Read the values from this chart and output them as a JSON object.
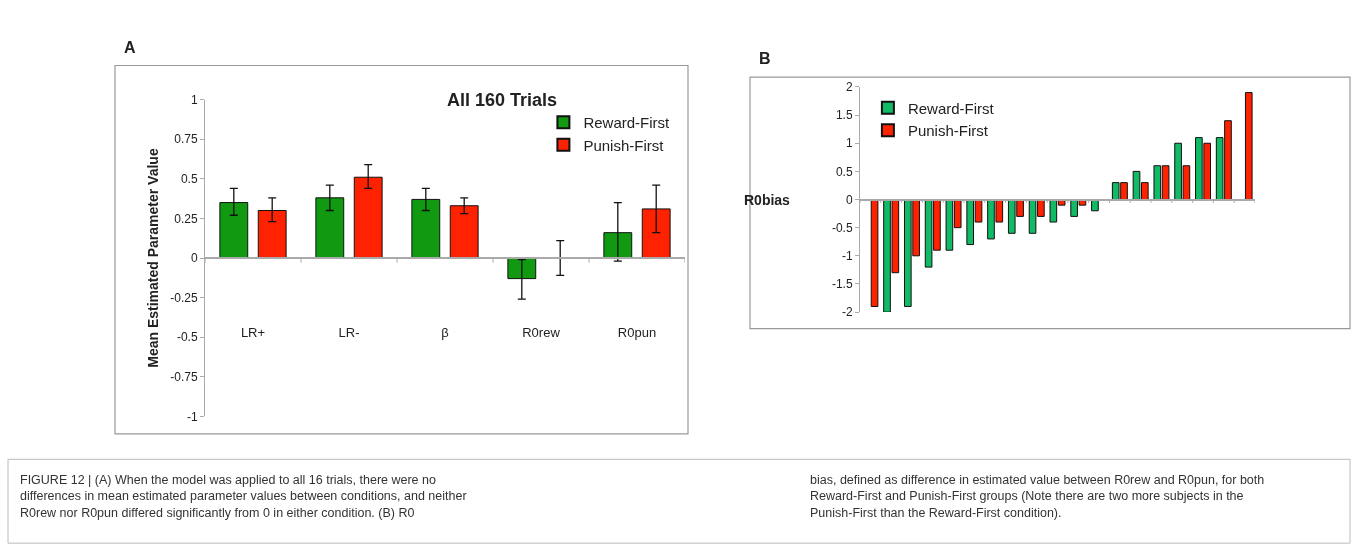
{
  "chart_data": [
    {
      "type": "bar",
      "title": "All 160 Trials",
      "ylabel": "Mean Estimated Parameter Value",
      "categories": [
        "LR+",
        "LR-",
        "β",
        "R0rew",
        "R0pun"
      ],
      "series": [
        {
          "name": "Reward-First",
          "color": "#119911",
          "values": [
            0.35,
            0.38,
            0.37,
            -0.13,
            0.16
          ],
          "errors": [
            [
              0.27,
              0.44
            ],
            [
              0.3,
              0.46
            ],
            [
              0.3,
              0.44
            ],
            [
              -0.26,
              -0.01
            ],
            [
              -0.02,
              0.35
            ]
          ]
        },
        {
          "name": "Punish-First",
          "color": "#ff2200",
          "values": [
            0.3,
            0.51,
            0.33,
            0.0,
            0.31
          ],
          "errors": [
            [
              0.23,
              0.38
            ],
            [
              0.44,
              0.59
            ],
            [
              0.28,
              0.38
            ],
            [
              -0.11,
              0.11
            ],
            [
              0.16,
              0.46
            ]
          ]
        }
      ],
      "ylim": [
        -1,
        1
      ],
      "yticks": [
        1,
        0.75,
        0.5,
        0.25,
        0,
        -0.25,
        -0.5,
        -0.75,
        -1
      ],
      "legend": "top right",
      "annotations": [
        "A",
        "FIGURE 12 | (A) When the model was applied to all 16 trials, there were no differences in mean estimated parameter values between conditions, and neither R0rew nor R0pun differed significantly from 0 in either condition. (B) R0"
      ]
    },
    {
      "type": "bar",
      "ylabel": "R0bias",
      "categories": [
        null,
        null,
        null,
        null,
        null,
        null,
        null,
        null,
        null,
        null,
        null,
        null,
        null,
        null,
        null,
        null,
        null,
        null,
        null
      ],
      "series": [
        {
          "name": "Reward-First",
          "color": "#11bb66",
          "values": [
            null,
            -2.0,
            -1.9,
            -1.2,
            -0.9,
            -0.8,
            -0.7,
            -0.6,
            -0.6,
            -0.4,
            -0.3,
            -0.2,
            0.3,
            0.5,
            0.6,
            1.0,
            1.1,
            1.1,
            null
          ]
        },
        {
          "name": "Punish-First",
          "color": "#ff2200",
          "values": [
            -1.9,
            -1.3,
            -1.0,
            -0.9,
            -0.5,
            -0.4,
            -0.4,
            -0.3,
            -0.3,
            -0.1,
            -0.1,
            null,
            0.3,
            0.3,
            0.6,
            0.6,
            1.0,
            1.4,
            1.9
          ]
        }
      ],
      "ylim": [
        -2,
        2
      ],
      "yticks": [
        2,
        1.5,
        1,
        0.5,
        0,
        -0.5,
        -1,
        -1.5,
        -2
      ],
      "tick_labels": "y",
      "legend": "top left",
      "annotations": [
        "B",
        "bias, defined as difference in estimated value between R0rew and R0pun, for both Reward-First and Punish-First groups (Note there are two more subjects in the Punish-First than the Reward-First condition)."
      ]
    }
  ]
}
